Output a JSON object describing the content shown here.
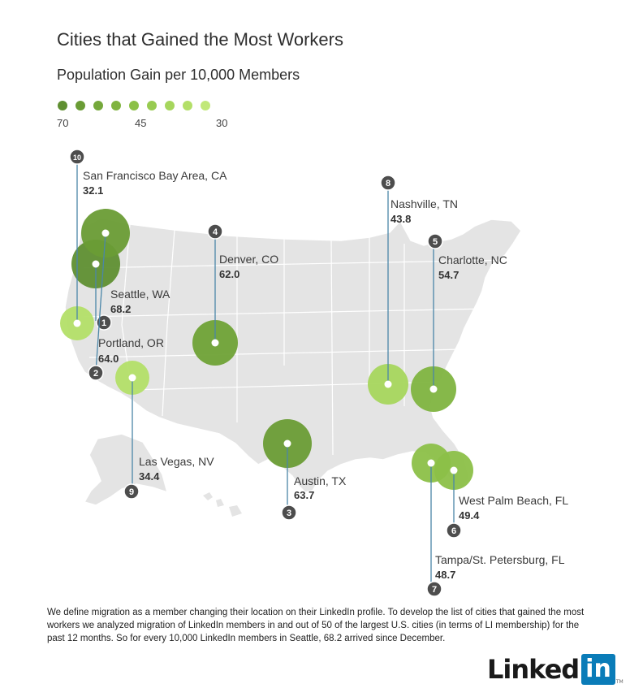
{
  "title": "Cities that Gained the Most Workers",
  "subtitle": "Population Gain per 10,000 Members",
  "legend": {
    "scale_labels": [
      "70",
      "45",
      "30"
    ],
    "colors": [
      "#5f8f31",
      "#6a9c35",
      "#75a83b",
      "#80b440",
      "#8cc048",
      "#98cb51",
      "#a6d65d",
      "#b3df68",
      "#c1e878"
    ]
  },
  "map_colors": {
    "land": "#e4e4e4",
    "border": "#ffffff",
    "leader_line": "#4a86a8",
    "badge": "#4d4d4d"
  },
  "cities": [
    {
      "rank": "1",
      "name": "Seattle, WA",
      "value": "68.2",
      "color": "#5f8f31"
    },
    {
      "rank": "2",
      "name": "Portland, OR",
      "value": "64.0",
      "color": "#6a9c35"
    },
    {
      "rank": "3",
      "name": "Austin, TX",
      "value": "63.7",
      "color": "#6a9c35"
    },
    {
      "rank": "4",
      "name": "Denver, CO",
      "value": "62.0",
      "color": "#6fa236"
    },
    {
      "rank": "5",
      "name": "Charlotte, NC",
      "value": "54.7",
      "color": "#80b440"
    },
    {
      "rank": "6",
      "name": "West Palm Beach, FL",
      "value": "49.4",
      "color": "#8cc048"
    },
    {
      "rank": "7",
      "name": "Tampa/St. Petersburg, FL",
      "value": "48.7",
      "color": "#8cc048"
    },
    {
      "rank": "8",
      "name": "Nashville, TN",
      "value": "43.8",
      "color": "#a6d65d"
    },
    {
      "rank": "9",
      "name": "Las Vegas, NV",
      "value": "34.4",
      "color": "#b3df68"
    },
    {
      "rank": "10",
      "name": "San Francisco Bay Area, CA",
      "value": "32.1",
      "color": "#b3df68"
    }
  ],
  "footnote": "We define migration as a member changing their location on their LinkedIn profile. To develop the list of cities that gained the most workers we analyzed migration of LinkedIn members in and out of 50 of the largest U.S. cities (in terms of LI membership) for the past 12 months. So for every 10,000 LinkedIn members in Seattle, 68.2 arrived since December.",
  "logo": {
    "word": "Linked",
    "box": "in",
    "tm": "TM"
  }
}
